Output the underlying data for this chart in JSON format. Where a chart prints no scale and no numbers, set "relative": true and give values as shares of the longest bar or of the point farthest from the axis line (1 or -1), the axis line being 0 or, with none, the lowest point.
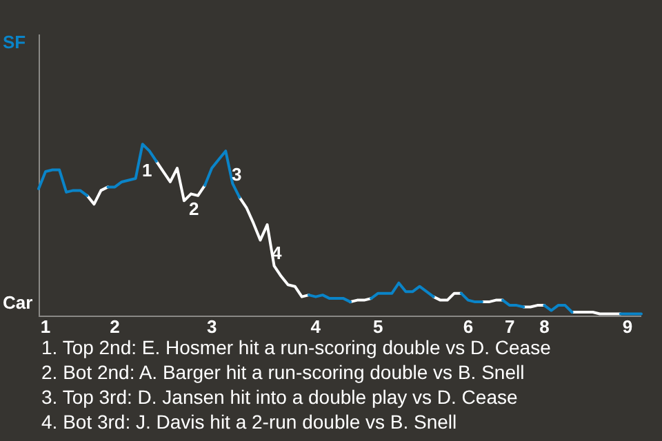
{
  "chart_data": {
    "type": "line",
    "relative": true,
    "categories": [
      null,
      "1",
      null,
      null,
      null,
      null,
      null,
      null,
      null,
      null,
      null,
      "2",
      null,
      null,
      null,
      null,
      null,
      null,
      null,
      null,
      null,
      null,
      null,
      null,
      null,
      "3",
      null,
      null,
      null,
      null,
      null,
      null,
      null,
      null,
      null,
      null,
      null,
      null,
      null,
      null,
      "4",
      null,
      null,
      null,
      null,
      null,
      null,
      null,
      null,
      "5",
      null,
      null,
      null,
      null,
      null,
      null,
      null,
      null,
      null,
      null,
      null,
      null,
      "6",
      null,
      null,
      null,
      null,
      null,
      "7",
      null,
      null,
      null,
      null,
      "8",
      null,
      null,
      null,
      null,
      null,
      null,
      null,
      null,
      null,
      null,
      null,
      "9",
      null,
      null
    ],
    "series": [
      {
        "color": "#0a84c8",
        "values": [
          0.74,
          0.84,
          0.85,
          0.85,
          0.72,
          0.73,
          0.73,
          0.7,
          null,
          null,
          0.75,
          0.75,
          0.78,
          0.79,
          0.8,
          1,
          0.96,
          0.9,
          null,
          null,
          null,
          null,
          null,
          null,
          0.76,
          0.86,
          0.91,
          0.96,
          0.77,
          0.69,
          null,
          null,
          null,
          null,
          null,
          null,
          null,
          null,
          null,
          0.12,
          0.11,
          0.12,
          0.1,
          0.1,
          0.1,
          0.08,
          null,
          null,
          0.1,
          0.13,
          0.13,
          0.13,
          0.19,
          0.14,
          0.14,
          0.17,
          0.14,
          0.11,
          null,
          null,
          null,
          0.13,
          0.09,
          0.08,
          0.08,
          null,
          null,
          0.09,
          0.06,
          0.06,
          0.05,
          null,
          null,
          0.06,
          0.03,
          0.06,
          0.06,
          0.02,
          null,
          null,
          null,
          null,
          null,
          null,
          0.01,
          0.01,
          0.01,
          0.01
        ]
      },
      {
        "color": "#ffffff",
        "values": [
          null,
          null,
          null,
          null,
          null,
          null,
          null,
          0.7,
          0.65,
          0.73,
          0.75,
          null,
          null,
          null,
          null,
          null,
          null,
          0.9,
          0.84,
          0.78,
          0.86,
          0.67,
          0.71,
          0.7,
          0.76,
          null,
          null,
          null,
          null,
          0.69,
          0.63,
          0.54,
          0.44,
          0.53,
          0.29,
          0.23,
          0.18,
          0.17,
          0.11,
          0.12,
          null,
          null,
          null,
          null,
          null,
          0.08,
          0.09,
          0.09,
          0.1,
          null,
          null,
          null,
          null,
          null,
          null,
          null,
          null,
          0.11,
          0.09,
          0.09,
          0.13,
          0.13,
          null,
          null,
          0.08,
          0.08,
          0.09,
          0.09,
          null,
          null,
          0.05,
          0.05,
          0.06,
          0.06,
          null,
          null,
          null,
          0.02,
          0.02,
          0.02,
          0.02,
          0.01,
          0.01,
          0.01,
          0.01,
          null,
          null,
          null
        ]
      }
    ],
    "annotations": [
      "SF",
      "Car",
      "1",
      "2",
      "3",
      "4",
      "1. Top 2nd: E. Hosmer hit a run-scoring double vs D. Cease",
      "2. Bot 2nd: A. Barger hit a run-scoring double vs B. Snell",
      "3. Top 3rd: D. Jansen hit into a double play vs D. Cease",
      "4. Bot 3rd: J. Davis hit a 2-run double vs B. Snell"
    ]
  }
}
